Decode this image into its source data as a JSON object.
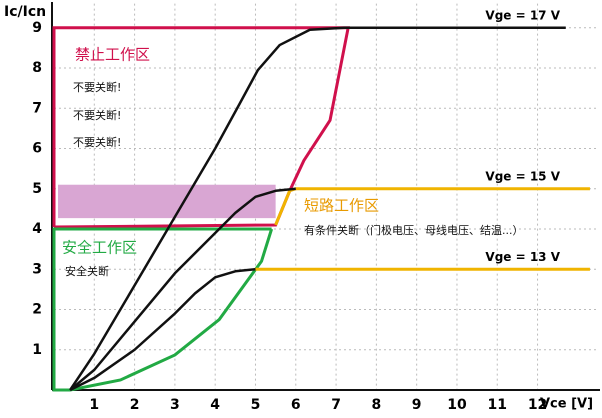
{
  "chart_data": {
    "type": "line",
    "y_label": "Ic/Icn",
    "x_label": "Vce [V]",
    "xlim": [
      0,
      13.5
    ],
    "ylim": [
      0,
      9.6
    ],
    "xticks": [
      1,
      2,
      3,
      4,
      5,
      6,
      7,
      8,
      9,
      10,
      11,
      12
    ],
    "yticks": [
      1,
      2,
      3,
      4,
      5,
      6,
      7,
      8,
      9
    ],
    "grid": true,
    "series": [
      {
        "name": "Vge = 17 V",
        "color": "#111111",
        "x": [
          0.4,
          1,
          2,
          3,
          4,
          4.6,
          5.06,
          5.6,
          6.35,
          7.2,
          8,
          10,
          12.7
        ],
        "values": [
          0,
          0.9,
          2.6,
          4.3,
          6.0,
          7.1,
          7.95,
          8.57,
          8.95,
          9,
          9,
          9,
          9
        ]
      },
      {
        "name": "Vge = 15 V",
        "color": "#111111",
        "x": [
          0.4,
          1,
          2,
          3,
          4,
          4.5,
          5,
          5.5,
          6
        ],
        "values": [
          0,
          0.5,
          1.7,
          2.9,
          3.9,
          4.4,
          4.8,
          4.95,
          5
        ]
      },
      {
        "name": "Vge = 13 V",
        "color": "#111111",
        "x": [
          0.4,
          1,
          2,
          3,
          3.5,
          4,
          4.5,
          5
        ],
        "values": [
          0,
          0.3,
          1.0,
          1.9,
          2.4,
          2.8,
          2.95,
          3
        ]
      }
    ],
    "regions": [
      {
        "color": "#d0104c",
        "x": [
          0,
          0,
          7.3,
          6.85,
          6.2,
          5.85,
          5.5,
          0
        ],
        "y": [
          4.05,
          9,
          9,
          6.7,
          5.7,
          4.95,
          4.1,
          4.05
        ]
      },
      {
        "color": "#22aa44",
        "x": [
          5.4,
          0,
          0,
          0.4,
          1.65,
          3,
          4.1,
          5.15,
          5.4
        ],
        "y": [
          4,
          4,
          0,
          0,
          0.25,
          0.87,
          1.75,
          3.2,
          4
        ]
      },
      {
        "color": "#f0b400",
        "x": [
          5.5,
          5.85,
          6,
          13.3
        ],
        "y": [
          4.1,
          4.95,
          5,
          5
        ]
      },
      {
        "color": "#f0b400",
        "x": [
          5,
          13.3
        ],
        "y": [
          3,
          3
        ]
      }
    ],
    "band": {
      "color": "#d9a6d3",
      "x": [
        0.1,
        5.5
      ],
      "y": [
        4.27,
        5.1
      ]
    },
    "annotations": [
      {
        "text": "禁止工作区",
        "color": "#d0104c"
      },
      {
        "text": "不要关断!",
        "color": "#111111"
      },
      {
        "text": "不要关断!",
        "color": "#111111"
      },
      {
        "text": "不要关断!",
        "color": "#111111"
      },
      {
        "text": "短路工作区",
        "color": "#e89a00"
      },
      {
        "text": "有条件关断（门极电压、母线电压、结温...）",
        "color": "#111111"
      },
      {
        "text": "安全工作区",
        "color": "#22aa44"
      },
      {
        "text": "安全关断",
        "color": "#111111"
      }
    ]
  }
}
